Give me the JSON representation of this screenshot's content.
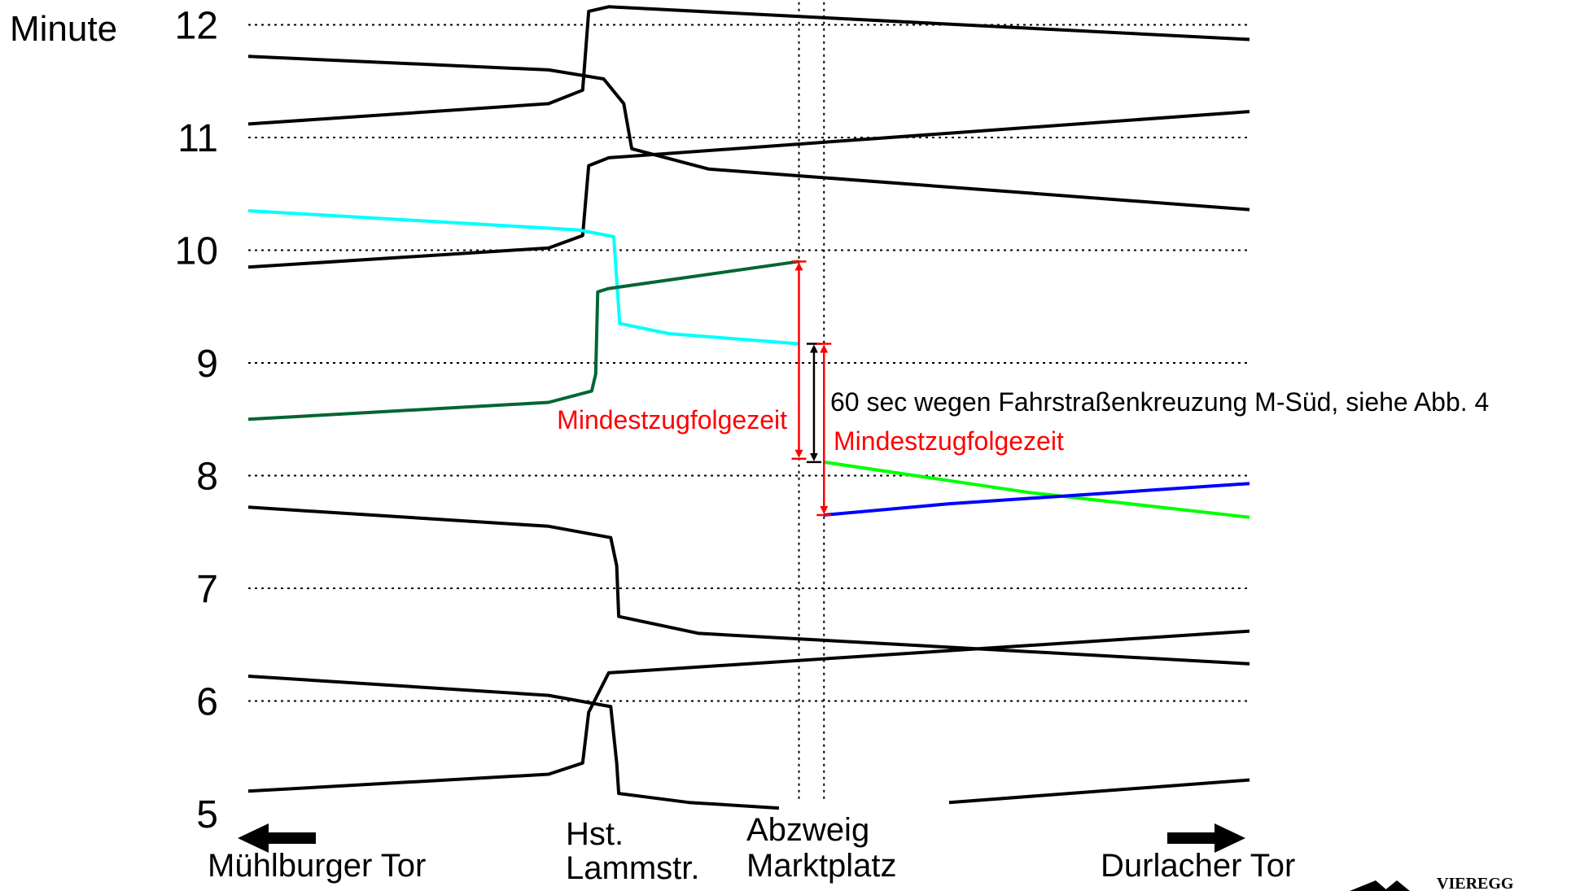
{
  "chart_data": {
    "type": "line",
    "title": "",
    "ylabel": "Minute",
    "ylim": [
      5,
      12
    ],
    "y_ticks": [
      "5",
      "6",
      "7",
      "8",
      "9",
      "10",
      "11",
      "12"
    ],
    "grid": "horizontal dotted at each minute; vertical dotted at Abzweig Marktplatz",
    "x_stations": [
      {
        "id": "muehlburger",
        "label_lines": [
          "Mühlburger Tor"
        ],
        "arrow": "left"
      },
      {
        "id": "lammstr",
        "label_lines": [
          "Hst.",
          "Lammstr."
        ]
      },
      {
        "id": "marktplatz",
        "label_lines": [
          "Abzweig",
          "Marktplatz"
        ]
      },
      {
        "id": "durlacher",
        "label_lines": [
          "Durlacher Tor"
        ],
        "arrow": "right"
      }
    ],
    "colors": {
      "black": "#000000",
      "cyan": "#00ffff",
      "darkgreen": "#006633",
      "green": "#00ff00",
      "blue": "#0000ff",
      "annotation_red": "#ff0000"
    },
    "series": [
      {
        "color": "black",
        "points": [
          [
            0,
            11.72
          ],
          [
            0.3,
            11.6
          ],
          [
            0.355,
            11.52
          ],
          [
            0.375,
            11.3
          ],
          [
            0.383,
            10.9
          ],
          [
            0.46,
            10.72
          ],
          [
            1.0,
            10.36
          ]
        ]
      },
      {
        "color": "black",
        "points": [
          [
            0,
            11.12
          ],
          [
            0.3,
            11.3
          ],
          [
            0.334,
            11.42
          ],
          [
            0.34,
            12.12
          ],
          [
            0.36,
            12.16
          ],
          [
            1.0,
            11.87
          ]
        ]
      },
      {
        "color": "black",
        "points": [
          [
            0,
            9.85
          ],
          [
            0.3,
            10.02
          ],
          [
            0.334,
            10.13
          ],
          [
            0.34,
            10.75
          ],
          [
            0.36,
            10.82
          ],
          [
            1.0,
            11.23
          ]
        ]
      },
      {
        "color": "cyan",
        "points": [
          [
            0,
            10.35
          ],
          [
            0.33,
            10.18
          ],
          [
            0.365,
            10.12
          ],
          [
            0.371,
            9.35
          ],
          [
            0.42,
            9.26
          ],
          [
            0.55,
            9.17
          ]
        ]
      },
      {
        "color": "darkgreen",
        "points": [
          [
            0,
            8.5
          ],
          [
            0.3,
            8.65
          ],
          [
            0.343,
            8.75
          ],
          [
            0.347,
            8.9
          ],
          [
            0.349,
            9.63
          ],
          [
            0.36,
            9.66
          ],
          [
            0.55,
            9.9
          ]
        ]
      },
      {
        "color": "green",
        "points": [
          [
            0.575,
            8.12
          ],
          [
            0.78,
            7.85
          ],
          [
            1.0,
            7.63
          ]
        ]
      },
      {
        "color": "blue",
        "points": [
          [
            0.575,
            7.65
          ],
          [
            0.7,
            7.75
          ],
          [
            1.0,
            7.93
          ]
        ]
      },
      {
        "color": "black",
        "points": [
          [
            0,
            7.72
          ],
          [
            0.3,
            7.55
          ],
          [
            0.362,
            7.45
          ],
          [
            0.368,
            7.2
          ],
          [
            0.37,
            6.75
          ],
          [
            0.45,
            6.6
          ],
          [
            1.0,
            6.33
          ]
        ]
      },
      {
        "color": "black",
        "points": [
          [
            0,
            5.2
          ],
          [
            0.3,
            5.35
          ],
          [
            0.334,
            5.45
          ],
          [
            0.34,
            5.9
          ],
          [
            0.36,
            6.25
          ],
          [
            1.0,
            6.62
          ]
        ]
      },
      {
        "color": "black",
        "points": [
          [
            0,
            6.22
          ],
          [
            0.3,
            6.05
          ],
          [
            0.362,
            5.95
          ],
          [
            0.368,
            5.45
          ],
          [
            0.37,
            5.18
          ],
          [
            0.44,
            5.1
          ],
          [
            0.53,
            5.05
          ]
        ]
      },
      {
        "color": "black",
        "points": [
          [
            0.7,
            5.1
          ],
          [
            1.0,
            5.3
          ]
        ]
      }
    ],
    "annotations": [
      {
        "text": "Mindestzugfolgezeit",
        "color": "annotation_red",
        "from": 8.15,
        "to": 9.9,
        "at": 0.55
      },
      {
        "text": "60 sec wegen Fahrstraßenkreuzung M-Süd, siehe Abb. 4",
        "color": "black",
        "from": 8.12,
        "to": 9.17,
        "at": 0.565
      },
      {
        "text": "Mindestzugfolgezeit",
        "color": "annotation_red",
        "from": 7.65,
        "to": 9.17,
        "at": 0.575
      }
    ]
  },
  "logo": {
    "text": "VIEREGG"
  }
}
